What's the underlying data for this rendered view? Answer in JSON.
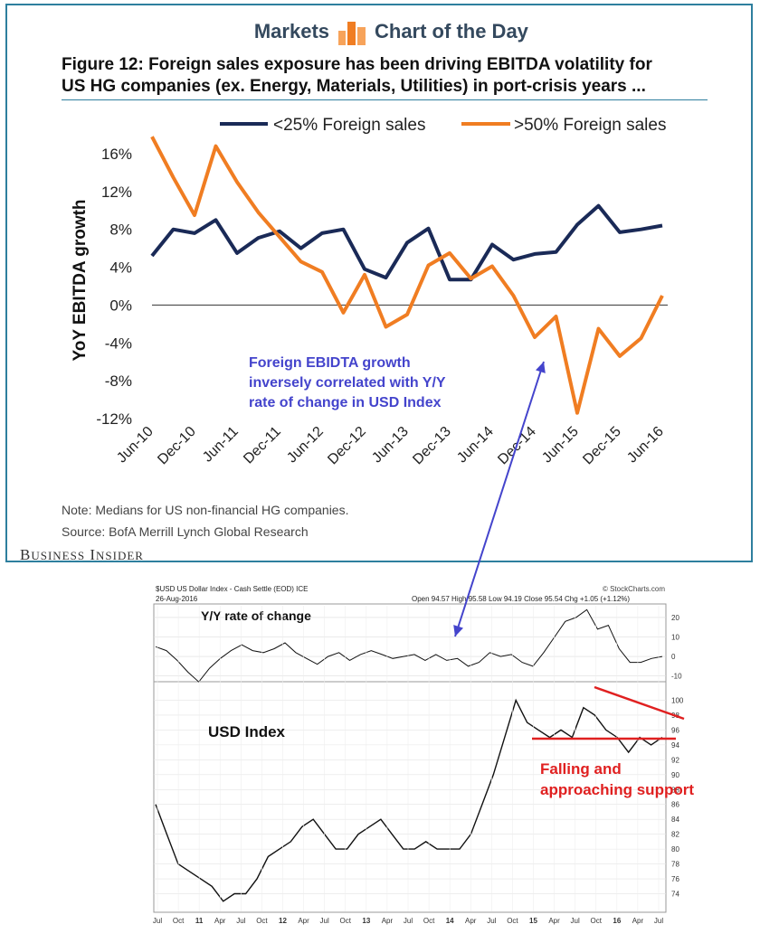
{
  "header": {
    "brand_left": "Markets",
    "brand_right": "Chart of the Day",
    "figure_title_line1": "Figure 12: Foreign sales exposure has been driving EBITDA volatility for",
    "figure_title_line2": "US HG companies (ex. Energy, Materials, Utilities) in port-crisis years ...",
    "note": "Note: Medians for US non-financial HG companies.",
    "source": "Source: BofA Merrill Lynch Global Research",
    "logo": "Business Insider"
  },
  "annotations": {
    "correlation_l1": "Foreign EBIDTA growth",
    "correlation_l2": "inversely correlated with Y/Y",
    "correlation_l3": "rate of change in USD Index",
    "usd_index_label": "USD Index",
    "support_l1": "Falling and",
    "support_l2": "approaching support",
    "yy_label": "Y/Y rate of change"
  },
  "colors": {
    "navy": "#1a2a57",
    "orange": "#f07d22",
    "annotation_blue": "#4444cc",
    "trend_red": "#e02020",
    "frame": "#2e7f9e"
  },
  "chart_data": [
    {
      "type": "line",
      "title": "Figure 12: Foreign sales exposure has been driving EBITDA volatility for US HG companies (ex. Energy, Materials, Utilities) in port-crisis years ...",
      "ylabel": "YoY EBITDA growth",
      "xlabel": "",
      "ylim": [
        -12,
        16
      ],
      "y_ticks": [
        "16%",
        "12%",
        "8%",
        "4%",
        "0%",
        "-4%",
        "-8%",
        "-12%"
      ],
      "x_ticks": [
        "Jun-10",
        "Dec-10",
        "Jun-11",
        "Dec-11",
        "Jun-12",
        "Dec-12",
        "Jun-13",
        "Dec-13",
        "Jun-14",
        "Dec-14",
        "Jun-15",
        "Dec-15",
        "Jun-16"
      ],
      "legend_position": "top",
      "series": [
        {
          "name": "<25% Foreign sales",
          "color": "#1a2a57",
          "values": [
            5.2,
            8.0,
            7.6,
            9.0,
            5.5,
            7.1,
            7.8,
            6.0,
            7.6,
            8.0,
            3.8,
            2.9,
            6.6,
            8.1,
            2.7,
            2.7,
            6.4,
            4.8,
            5.4,
            5.6,
            8.5,
            10.5,
            7.7,
            8.0,
            8.4
          ]
        },
        {
          "name": ">50% Foreign sales",
          "color": "#f07d22",
          "values": [
            17.8,
            13.5,
            9.5,
            16.8,
            13.0,
            9.8,
            7.2,
            4.6,
            3.5,
            -0.8,
            3.2,
            -2.3,
            -1.0,
            4.2,
            5.5,
            2.8,
            4.1,
            1.0,
            -3.4,
            -1.2,
            -11.4,
            -2.5,
            -5.4,
            -3.5,
            1.0
          ]
        }
      ]
    },
    {
      "type": "line",
      "title": "$USD US Dollar Index - Cash Settle (EOD) ICE",
      "date": "26-Aug-2016",
      "quote": "Open 94.57  High 95.58  Low 94.19  Close 95.54  Chg +1.05 (+1.12%)",
      "watermark": "© StockCharts.com",
      "x_ticks": [
        "Jul",
        "Oct",
        "11",
        "Apr",
        "Jul",
        "Oct",
        "12",
        "Apr",
        "Jul",
        "Oct",
        "13",
        "Apr",
        "Jul",
        "Oct",
        "14",
        "Apr",
        "Jul",
        "Oct",
        "15",
        "Apr",
        "Jul",
        "Oct",
        "16",
        "Apr",
        "Jul"
      ],
      "roc_panel": {
        "label": "Y/Y rate of change",
        "y_ticks": [
          "20",
          "10",
          "0",
          "-10"
        ],
        "ylim": [
          -12,
          26
        ],
        "values": [
          5,
          3,
          -2,
          -8,
          -13,
          -6,
          -1,
          3,
          6,
          3,
          2,
          4,
          7,
          2,
          -1,
          -4,
          0,
          2,
          -2,
          1,
          3,
          1,
          -1,
          0,
          1,
          -2,
          1,
          -2,
          -1,
          -5,
          -3,
          2,
          0,
          1,
          -3,
          -5,
          2,
          10,
          18,
          20,
          24,
          14,
          16,
          4,
          -3,
          -3,
          -1,
          0
        ]
      },
      "price_panel": {
        "label": "USD Index",
        "y_ticks": [
          "100",
          "98",
          "96",
          "94",
          "92",
          "90",
          "88",
          "86",
          "84",
          "82",
          "80",
          "78",
          "76",
          "74"
        ],
        "ylim": [
          72,
          102
        ],
        "values": [
          86,
          82,
          78,
          77,
          76,
          75,
          73,
          74,
          74,
          76,
          79,
          80,
          81,
          83,
          84,
          82,
          80,
          80,
          82,
          83,
          84,
          82,
          80,
          80,
          81,
          80,
          80,
          80,
          82,
          86,
          90,
          95,
          100,
          97,
          96,
          95,
          96,
          95,
          99,
          98,
          96,
          95,
          93,
          95,
          94,
          95
        ]
      }
    }
  ]
}
